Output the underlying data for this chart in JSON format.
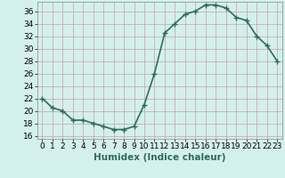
{
  "x": [
    0,
    1,
    2,
    3,
    4,
    5,
    6,
    7,
    8,
    9,
    10,
    11,
    12,
    13,
    14,
    15,
    16,
    17,
    18,
    19,
    20,
    21,
    22,
    23
  ],
  "y": [
    22,
    20.5,
    20,
    18.5,
    18.5,
    18,
    17.5,
    17,
    17,
    17.5,
    21,
    26,
    32.5,
    34,
    35.5,
    36,
    37,
    37,
    36.5,
    35,
    34.5,
    32,
    30.5,
    28
  ],
  "line_color": "#2e6b5e",
  "marker": "+",
  "marker_size": 4,
  "bg_color": "#d4f0ec",
  "grid_color": "#c8a0a0",
  "xlabel": "Humidex (Indice chaleur)",
  "xlim": [
    -0.5,
    23.5
  ],
  "ylim": [
    15.5,
    37.5
  ],
  "xticks": [
    0,
    1,
    2,
    3,
    4,
    5,
    6,
    7,
    8,
    9,
    10,
    11,
    12,
    13,
    14,
    15,
    16,
    17,
    18,
    19,
    20,
    21,
    22,
    23
  ],
  "yticks": [
    16,
    18,
    20,
    22,
    24,
    26,
    28,
    30,
    32,
    34,
    36
  ],
  "xlabel_fontsize": 7.5,
  "tick_fontsize": 6.5,
  "line_width": 1.2
}
